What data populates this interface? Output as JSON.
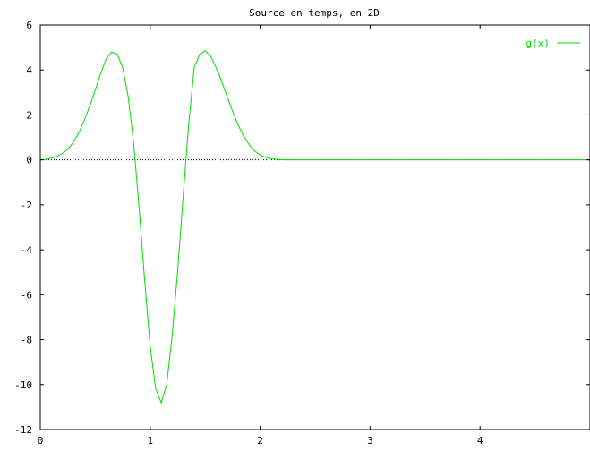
{
  "chart_data": {
    "type": "line",
    "title": "Source en temps, en 2D",
    "xlabel": "",
    "ylabel": "",
    "xlim": [
      0,
      5
    ],
    "ylim": [
      -12,
      6
    ],
    "xticks": [
      0,
      1,
      2,
      3,
      4
    ],
    "xtick_labels": [
      "0",
      "1",
      "2",
      "3",
      "4"
    ],
    "yticks": [
      6,
      4,
      2,
      0,
      -2,
      -4,
      -6,
      -8,
      -10,
      -12
    ],
    "ytick_labels": [
      "6",
      "4",
      "2",
      "0",
      "-2",
      "-4",
      "-6",
      "-8",
      "-10",
      "-12"
    ],
    "grid": false,
    "zero_line": true,
    "legend_position": "top-right",
    "series": [
      {
        "name": "g(x)",
        "color": "#00dd00",
        "x": [
          0.0,
          0.05,
          0.1,
          0.15,
          0.2,
          0.25,
          0.3,
          0.35,
          0.4,
          0.45,
          0.5,
          0.55,
          0.6,
          0.65,
          0.7,
          0.75,
          0.8,
          0.85,
          0.9,
          0.95,
          1.0,
          1.05,
          1.1,
          1.15,
          1.2,
          1.25,
          1.3,
          1.35,
          1.4,
          1.45,
          1.5,
          1.55,
          1.6,
          1.65,
          1.7,
          1.75,
          1.8,
          1.85,
          1.9,
          1.95,
          2.0,
          2.05,
          2.1,
          2.15,
          2.2,
          2.25,
          2.3,
          2.35,
          2.4,
          2.45,
          2.5,
          2.55,
          2.6,
          2.65,
          2.7,
          2.8,
          3.0,
          3.5,
          4.0,
          4.5,
          5.0
        ],
        "y": [
          0.0,
          0.02,
          0.07,
          0.15,
          0.28,
          0.48,
          0.78,
          1.2,
          1.75,
          2.4,
          3.1,
          3.85,
          4.5,
          4.8,
          4.7,
          4.1,
          2.8,
          0.7,
          -2.2,
          -5.4,
          -8.3,
          -10.2,
          -10.8,
          -10.0,
          -7.8,
          -4.9,
          -1.6,
          1.6,
          4.1,
          4.7,
          4.85,
          4.6,
          4.1,
          3.5,
          2.8,
          2.15,
          1.55,
          1.05,
          0.68,
          0.4,
          0.22,
          0.11,
          0.05,
          0.02,
          0.01,
          0.0,
          0.0,
          0.0,
          0.0,
          0.0,
          0.0,
          0.0,
          0.0,
          0.0,
          0.0,
          0.0,
          0.0,
          0.0,
          0.0,
          0.0,
          0.0
        ]
      }
    ]
  }
}
